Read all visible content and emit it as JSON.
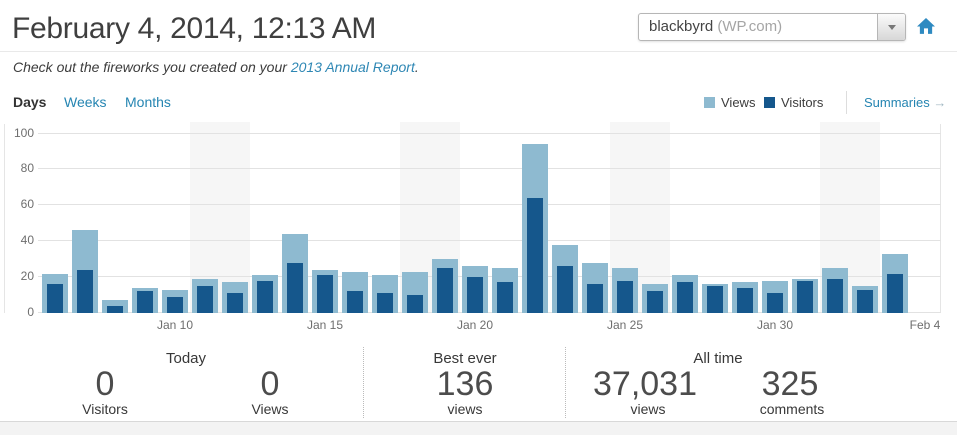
{
  "header": {
    "title": "February 4, 2014, 12:13 AM",
    "subtitle_prefix": "Check out the fireworks you created on your ",
    "subtitle_link": "2013 Annual Report",
    "subtitle_suffix": ".",
    "site_selector_value": "blackbyrd",
    "site_selector_suffix": " (WP.com)"
  },
  "tabs": [
    {
      "label": "Days",
      "active": true
    },
    {
      "label": "Weeks",
      "active": false
    },
    {
      "label": "Months",
      "active": false
    }
  ],
  "legend": {
    "views_label": "Views",
    "visitors_label": "Visitors",
    "summaries_label": "Summaries",
    "summaries_arrow": "→"
  },
  "colors": {
    "views": "#8ebad0",
    "visitors": "#15578c",
    "link_blue": "#2585b2",
    "home_icon_blue": "#2e8ac1",
    "weekend_band": "#f6f6f6"
  },
  "chart_data": {
    "type": "bar",
    "categories": [
      "Jan 6",
      "Jan 7",
      "Jan 8",
      "Jan 9",
      "Jan 10",
      "Jan 11",
      "Jan 12",
      "Jan 13",
      "Jan 14",
      "Jan 15",
      "Jan 16",
      "Jan 17",
      "Jan 18",
      "Jan 19",
      "Jan 20",
      "Jan 21",
      "Jan 22",
      "Jan 23",
      "Jan 24",
      "Jan 25",
      "Jan 26",
      "Jan 27",
      "Jan 28",
      "Jan 29",
      "Jan 30",
      "Jan 31",
      "Feb 1",
      "Feb 2",
      "Feb 3",
      "Feb 4"
    ],
    "series": [
      {
        "name": "Views",
        "color": "#8ebad0",
        "values": [
          22,
          46,
          7,
          14,
          13,
          19,
          17,
          21,
          44,
          24,
          23,
          21,
          23,
          30,
          26,
          25,
          94,
          38,
          28,
          25,
          16,
          21,
          16,
          17,
          18,
          19,
          25,
          15,
          33,
          0
        ]
      },
      {
        "name": "Visitors",
        "color": "#15578c",
        "values": [
          16,
          24,
          4,
          12,
          9,
          15,
          11,
          18,
          28,
          21,
          12,
          11,
          10,
          25,
          20,
          17,
          64,
          26,
          16,
          18,
          12,
          17,
          15,
          14,
          11,
          18,
          19,
          13,
          22,
          0
        ]
      }
    ],
    "x_tick_labels": [
      "Jan 10",
      "Jan 15",
      "Jan 20",
      "Jan 25",
      "Jan 30",
      "Feb 4"
    ],
    "x_tick_indices": [
      4,
      9,
      14,
      19,
      24,
      29
    ],
    "yticks": [
      0,
      20,
      40,
      60,
      80,
      100
    ],
    "ylim": [
      0,
      100
    ],
    "grid": true,
    "legend_position": "top-right",
    "weekend_shading_indices": [
      5,
      6,
      12,
      13,
      19,
      20,
      26,
      27
    ]
  },
  "stats": {
    "sections": [
      {
        "title": "Today",
        "items": [
          {
            "value": "0",
            "label": "Visitors"
          },
          {
            "value": "0",
            "label": "Views"
          }
        ]
      },
      {
        "title": "Best ever",
        "items": [
          {
            "value": "136",
            "label": "views"
          }
        ]
      },
      {
        "title": "All time",
        "items": [
          {
            "value": "37,031",
            "label": "views"
          },
          {
            "value": "325",
            "label": "comments"
          }
        ]
      }
    ]
  }
}
